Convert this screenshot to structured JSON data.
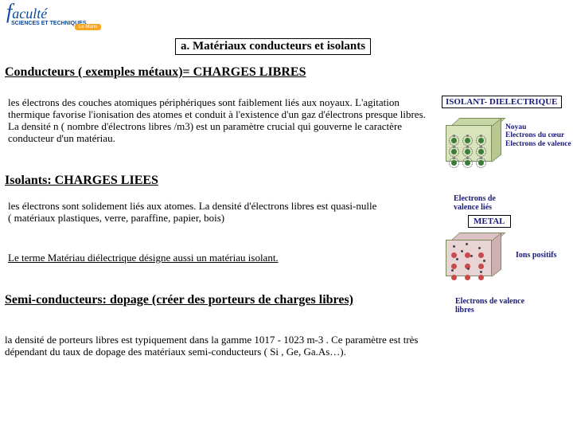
{
  "logo": {
    "brand_initial": "f",
    "word": "aculté",
    "line1": "SCIENCES ET TECHNIQUES",
    "pill": "Le Mans"
  },
  "title": "a. Matériaux conducteurs et isolants",
  "conductors": {
    "heading": "Conducteurs ( exemples métaux)= CHARGES LIBRES",
    "body": "les électrons des couches atomiques périphériques sont faiblement liés aux noyaux. L'agitation thermique favorise l'ionisation des atomes et conduit à l'existence d'un gaz d'électrons presque libres. La densité n ( nombre d'électrons libres /m3) est un paramètre crucial qui gouverne le caractère conducteur d'un matériau."
  },
  "insulators": {
    "heading": "Isolants: CHARGES LIEES",
    "body": "les électrons sont solidement liés aux atomes. La densité d'électrons libres est quasi-nulle\n( matériaux plastiques, verre, paraffine, papier, bois)",
    "dielectric_note": "Le terme Matériau diélectrique désigne aussi un matériau isolant."
  },
  "semiconductors": {
    "heading": "Semi-conducteurs: dopage (créer des porteurs de charges libres)",
    "body": "la densité de porteurs libres est typiquement dans la gamme 1017 - 1023 m-3 . Ce paramètre est très dépendant du taux de dopage des matériaux semi-conducteurs ( Si , Ge, Ga.As…)."
  },
  "diagram": {
    "iso_label": "ISOLANT- DIELECTRIQUE",
    "metal_label": "METAL",
    "legend_nucleus": "Noyau\nElectrons du cœur\nElectrons de valence",
    "legend_bound": "Electrons de\nvalence liés",
    "legend_ions": "Ions positifs",
    "legend_free": "Electrons de valence\nlibres",
    "colors": {
      "nucleus_insulator": "#3a7d3a",
      "nucleus_metal": "#c94a4a",
      "cube_fill_insulator": "#d9e4bd",
      "cube_top_insulator": "#c8d6a6",
      "cube_side_insulator": "#b7c790",
      "cube_fill_metal": "#e8d4d4",
      "cube_top_metal": "#dcc2c2",
      "cube_side_metal": "#cfb0b0"
    }
  }
}
